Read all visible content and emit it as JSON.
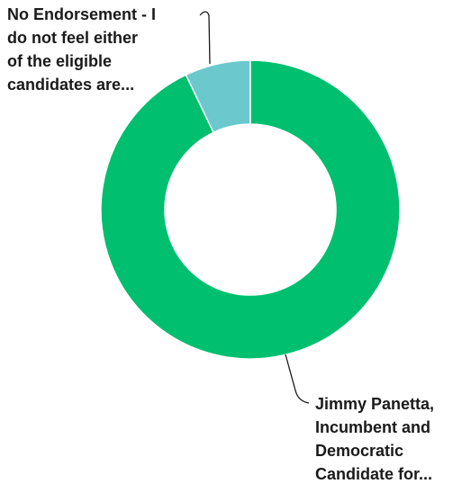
{
  "chart_data": {
    "type": "pie",
    "donut": true,
    "slices": [
      {
        "label_lines": [
          "No Endorsement - I",
          "do not feel either",
          "of the eligible",
          "candidates are..."
        ],
        "value": 7.1,
        "color": "#6bc8cd"
      },
      {
        "label_lines": [
          "Jimmy Panetta,",
          "Incumbent and",
          "Democratic",
          "Candidate for..."
        ],
        "value": 92.9,
        "color": "#00bf6f"
      }
    ]
  }
}
